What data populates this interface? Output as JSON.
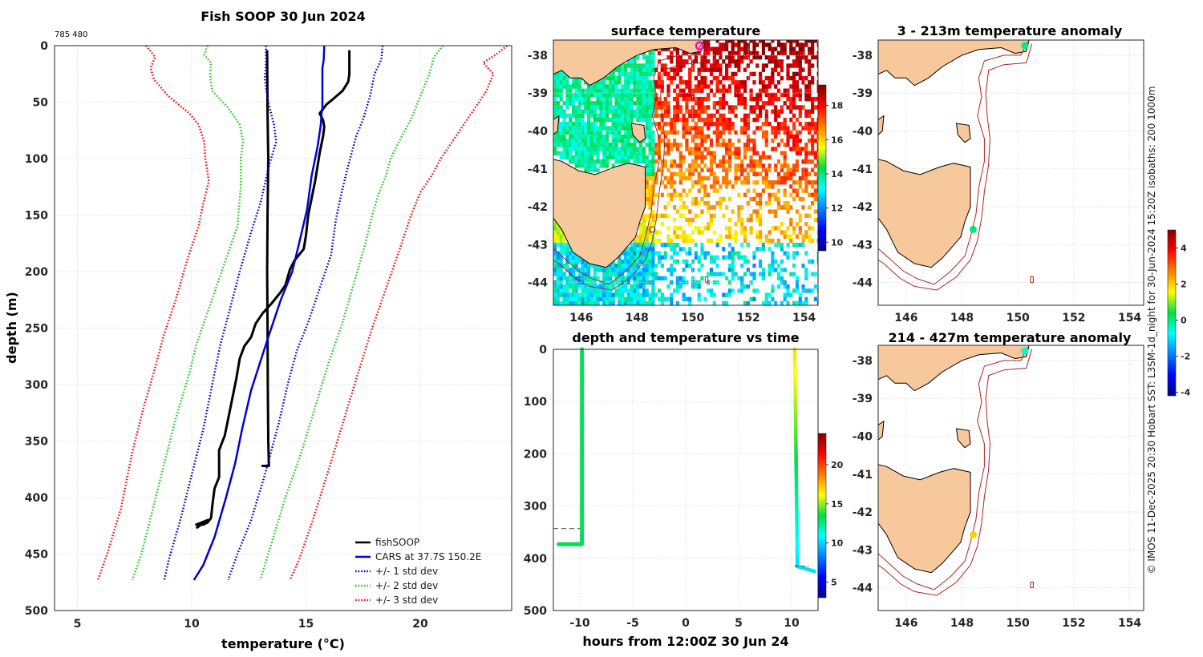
{
  "colors": {
    "fishsoop": "#000000",
    "cars": "#0000dd",
    "std1": "#0000cc",
    "std2": "#22cc22",
    "std3": "#ee1111",
    "land": "#f7c89b",
    "isobath": "#b22222",
    "marker_start": "#ff00cc"
  },
  "chart_data": [
    {
      "type": "line",
      "title": "Fish SOOP 30 Jun 2024",
      "id_label": "785 480",
      "xlabel": "temperature (°C)",
      "ylabel": "depth (m)",
      "xlim": [
        4,
        24
      ],
      "ylim": [
        500,
        0
      ],
      "xticks": [
        "5",
        "10",
        "15",
        "20"
      ],
      "yticks": [
        "0",
        "50",
        "100",
        "150",
        "200",
        "250",
        "300",
        "350",
        "400",
        "450",
        "500"
      ],
      "legend": [
        "fishSOOP",
        "CARS at 37.7S 150.2E",
        "+/- 1 std dev",
        "+/- 2 std dev",
        "+/- 3 std dev"
      ],
      "legend_position": "bottom-right",
      "series": [
        {
          "name": "fishSOOP",
          "style": "solid",
          "color": "#000000",
          "width": 3,
          "points": [
            [
              16.9,
              4
            ],
            [
              16.9,
              25
            ],
            [
              16.85,
              32
            ],
            [
              16.6,
              40
            ],
            [
              16.2,
              47
            ],
            [
              15.9,
              52
            ],
            [
              15.6,
              60
            ],
            [
              15.75,
              66
            ],
            [
              15.8,
              72
            ],
            [
              15.75,
              80
            ],
            [
              15.6,
              95
            ],
            [
              15.4,
              120
            ],
            [
              15.1,
              150
            ],
            [
              15.0,
              168
            ],
            [
              14.9,
              180
            ],
            [
              14.5,
              190
            ],
            [
              14.3,
              198
            ],
            [
              14.2,
              205
            ],
            [
              14.1,
              212
            ],
            [
              13.9,
              218
            ],
            [
              13.5,
              228
            ],
            [
              13.1,
              237
            ],
            [
              12.8,
              246
            ],
            [
              12.6,
              258
            ],
            [
              12.3,
              266
            ],
            [
              12.1,
              277
            ],
            [
              11.95,
              295
            ],
            [
              11.8,
              310
            ],
            [
              11.6,
              330
            ],
            [
              11.45,
              345
            ],
            [
              11.2,
              358
            ],
            [
              11.2,
              382
            ],
            [
              11.0,
              392
            ],
            [
              10.9,
              408
            ],
            [
              10.85,
              418
            ],
            [
              10.7,
              422
            ],
            [
              10.5,
              424
            ],
            [
              10.2,
              424
            ],
            [
              10.7,
              420
            ],
            [
              10.2,
              427
            ]
          ]
        },
        {
          "name": "fishSOOP_downcast",
          "style": "solid",
          "color": "#000000",
          "width": 3,
          "points": [
            [
              13.3,
              4
            ],
            [
              13.32,
              60
            ],
            [
              13.35,
              100
            ],
            [
              13.32,
              150
            ],
            [
              13.3,
              200
            ],
            [
              13.32,
              250
            ],
            [
              13.33,
              300
            ],
            [
              13.35,
              350
            ],
            [
              13.38,
              372
            ],
            [
              13.1,
              372
            ],
            [
              13.3,
              372
            ]
          ]
        },
        {
          "name": "CARS at 37.7S 150.2E",
          "style": "solid",
          "color": "#0000dd",
          "width": 2.5,
          "points": [
            [
              15.8,
              0
            ],
            [
              15.78,
              12
            ],
            [
              15.72,
              20
            ],
            [
              15.72,
              35
            ],
            [
              15.72,
              55
            ],
            [
              15.68,
              60
            ],
            [
              15.65,
              70
            ],
            [
              15.5,
              90
            ],
            [
              15.25,
              115
            ],
            [
              15.05,
              145
            ],
            [
              14.7,
              175
            ],
            [
              14.4,
              200
            ],
            [
              13.9,
              225
            ],
            [
              13.4,
              255
            ],
            [
              13.0,
              280
            ],
            [
              12.6,
              305
            ],
            [
              12.2,
              340
            ],
            [
              11.9,
              370
            ],
            [
              11.5,
              400
            ],
            [
              11.0,
              435
            ],
            [
              10.5,
              460
            ],
            [
              10.1,
              473
            ]
          ]
        },
        {
          "name": "+/- 1 std dev",
          "style": "dotted",
          "color": "#0000cc",
          "width": 2.5,
          "points": [
            [
              13.25,
              0
            ],
            [
              13.25,
              15
            ],
            [
              13.2,
              30
            ],
            [
              13.35,
              50
            ],
            [
              13.6,
              70
            ],
            [
              13.7,
              85
            ],
            [
              13.4,
              105
            ],
            [
              13.0,
              140
            ],
            [
              12.6,
              165
            ],
            [
              12.1,
              200
            ],
            [
              11.65,
              235
            ],
            [
              11.25,
              265
            ],
            [
              10.9,
              300
            ],
            [
              10.5,
              340
            ],
            [
              10.0,
              380
            ],
            [
              9.5,
              420
            ],
            [
              9.0,
              455
            ],
            [
              8.8,
              473
            ]
          ]
        },
        {
          "name": "+/- 1 std dev",
          "style": "dotted",
          "color": "#0000cc",
          "width": 2.5,
          "points": [
            [
              18.35,
              0
            ],
            [
              18.3,
              12
            ],
            [
              18.0,
              25
            ],
            [
              17.8,
              45
            ],
            [
              17.5,
              65
            ],
            [
              17.2,
              80
            ],
            [
              17.0,
              95
            ],
            [
              16.8,
              110
            ],
            [
              16.5,
              135
            ],
            [
              16.3,
              155
            ],
            [
              16.1,
              185
            ],
            [
              15.6,
              215
            ],
            [
              15.1,
              245
            ],
            [
              14.6,
              270
            ],
            [
              14.2,
              300
            ],
            [
              13.8,
              335
            ],
            [
              13.2,
              380
            ],
            [
              12.6,
              420
            ],
            [
              12.0,
              450
            ],
            [
              11.6,
              473
            ]
          ]
        },
        {
          "name": "+/- 2 std dev",
          "style": "dotted",
          "color": "#22cc22",
          "width": 2.5,
          "points": [
            [
              10.7,
              0
            ],
            [
              10.55,
              8
            ],
            [
              10.85,
              15
            ],
            [
              10.8,
              25
            ],
            [
              10.9,
              40
            ],
            [
              11.6,
              55
            ],
            [
              12.1,
              70
            ],
            [
              12.25,
              85
            ],
            [
              12.15,
              100
            ],
            [
              12.15,
              125
            ],
            [
              12.0,
              160
            ],
            [
              11.4,
              195
            ],
            [
              10.8,
              230
            ],
            [
              10.2,
              265
            ],
            [
              9.9,
              290
            ],
            [
              9.3,
              330
            ],
            [
              8.8,
              370
            ],
            [
              8.3,
              410
            ],
            [
              7.8,
              450
            ],
            [
              7.4,
              473
            ]
          ]
        },
        {
          "name": "+/- 2 std dev",
          "style": "dotted",
          "color": "#22cc22",
          "width": 2.5,
          "points": [
            [
              21.0,
              0
            ],
            [
              20.6,
              10
            ],
            [
              20.4,
              25
            ],
            [
              20.0,
              45
            ],
            [
              19.6,
              65
            ],
            [
              19.2,
              80
            ],
            [
              18.7,
              100
            ],
            [
              18.5,
              115
            ],
            [
              18.2,
              130
            ],
            [
              17.9,
              150
            ],
            [
              17.6,
              175
            ],
            [
              17.1,
              210
            ],
            [
              16.6,
              245
            ],
            [
              16.0,
              280
            ],
            [
              15.4,
              320
            ],
            [
              14.8,
              360
            ],
            [
              14.1,
              400
            ],
            [
              13.5,
              440
            ],
            [
              13.0,
              473
            ]
          ]
        },
        {
          "name": "+/- 3 std dev",
          "style": "dotted",
          "color": "#ee1111",
          "width": 2.5,
          "points": [
            [
              8.0,
              0
            ],
            [
              8.4,
              10
            ],
            [
              8.2,
              20
            ],
            [
              8.35,
              30
            ],
            [
              9.0,
              45
            ],
            [
              9.9,
              60
            ],
            [
              10.3,
              70
            ],
            [
              10.55,
              85
            ],
            [
              10.6,
              100
            ],
            [
              10.75,
              120
            ],
            [
              10.5,
              140
            ],
            [
              10.3,
              160
            ],
            [
              9.8,
              190
            ],
            [
              9.3,
              225
            ],
            [
              8.8,
              255
            ],
            [
              8.4,
              285
            ],
            [
              7.9,
              320
            ],
            [
              7.4,
              360
            ],
            [
              6.9,
              410
            ],
            [
              6.3,
              450
            ],
            [
              5.9,
              473
            ]
          ]
        },
        {
          "name": "+/- 3 std dev",
          "style": "dotted",
          "color": "#ee1111",
          "width": 2.5,
          "points": [
            [
              23.8,
              0
            ],
            [
              23.3,
              8
            ],
            [
              22.75,
              15
            ],
            [
              23.2,
              25
            ],
            [
              22.9,
              40
            ],
            [
              22.4,
              55
            ],
            [
              21.9,
              70
            ],
            [
              21.4,
              85
            ],
            [
              20.9,
              100
            ],
            [
              20.5,
              115
            ],
            [
              20.0,
              130
            ],
            [
              19.6,
              150
            ],
            [
              19.1,
              180
            ],
            [
              18.5,
              215
            ],
            [
              17.9,
              250
            ],
            [
              17.2,
              295
            ],
            [
              16.6,
              335
            ],
            [
              16.0,
              375
            ],
            [
              15.3,
              420
            ],
            [
              14.7,
              455
            ],
            [
              14.3,
              473
            ]
          ]
        }
      ]
    },
    {
      "type": "heatmap",
      "title": "surface temperature",
      "xlim": [
        145,
        154.5
      ],
      "ylim": [
        -44.6,
        -37.6
      ],
      "xticks": [
        "146",
        "148",
        "150",
        "152",
        "154"
      ],
      "yticks": [
        "-38",
        "-39",
        "-40",
        "-41",
        "-42",
        "-43",
        "-44"
      ],
      "colorbar": {
        "range": [
          9.5,
          19.2
        ],
        "ticks": [
          "10",
          "12",
          "14",
          "16",
          "18"
        ]
      },
      "start_marker": [
        150.25,
        -37.75
      ],
      "end_marker": [
        148.55,
        -42.6
      ]
    },
    {
      "type": "scatter",
      "title": "depth and temperature vs time",
      "xlabel": "hours from 12:00Z 30 Jun 24",
      "xlim": [
        -12.5,
        12.5
      ],
      "ylim": [
        500,
        0
      ],
      "xticks": [
        "-10",
        "-5",
        "0",
        "5",
        "10"
      ],
      "yticks": [
        "0",
        "100",
        "200",
        "300",
        "400",
        "500"
      ],
      "colorbar": {
        "range": [
          3,
          24
        ],
        "ticks": [
          "5",
          "10",
          "15",
          "20"
        ]
      },
      "reference_depth": 343,
      "drop1": {
        "hours": [
          -12,
          -9.8
        ],
        "depth": [
          0,
          373
        ],
        "temp": "13.3"
      },
      "drop2": {
        "hours": [
          10.3,
          12.3
        ],
        "depth": [
          0,
          427
        ],
        "temp_top": "16.9",
        "temp_bottom": "10.2"
      }
    },
    {
      "type": "scatter",
      "title": "3 - 213m temperature anomaly",
      "xlim": [
        145,
        154.5
      ],
      "ylim": [
        -44.6,
        -37.6
      ],
      "xticks": [
        "146",
        "148",
        "150",
        "152",
        "154"
      ],
      "yticks": [
        "-38",
        "-39",
        "-40",
        "-41",
        "-42",
        "-43",
        "-44"
      ],
      "points": [
        {
          "lon": 150.25,
          "lat": -37.75,
          "anomaly": 0.0
        },
        {
          "lon": 148.4,
          "lat": -42.6,
          "anomaly": 0.1
        }
      ]
    },
    {
      "type": "scatter",
      "title": "214 - 427m temperature anomaly",
      "xlim": [
        145,
        154.5
      ],
      "ylim": [
        -44.6,
        -37.6
      ],
      "xticks": [
        "146",
        "148",
        "150",
        "152",
        "154"
      ],
      "yticks": [
        "-38",
        "-39",
        "-40",
        "-41",
        "-42",
        "-43",
        "-44"
      ],
      "points": [
        {
          "lon": 150.25,
          "lat": -37.75,
          "anomaly": -0.5
        },
        {
          "lon": 148.4,
          "lat": -42.6,
          "anomaly": 2.0
        }
      ],
      "colorbar": {
        "range": [
          -4.2,
          5.0
        ],
        "ticks": [
          "-4",
          "-2",
          "0",
          "2",
          "4"
        ]
      }
    }
  ],
  "side_note": "© IMOS 11-Dec-2025 20:30 Hobart SST: L3SM-1d_night for 30-Jun-2024 15:20Z isobaths: 200  1000m"
}
